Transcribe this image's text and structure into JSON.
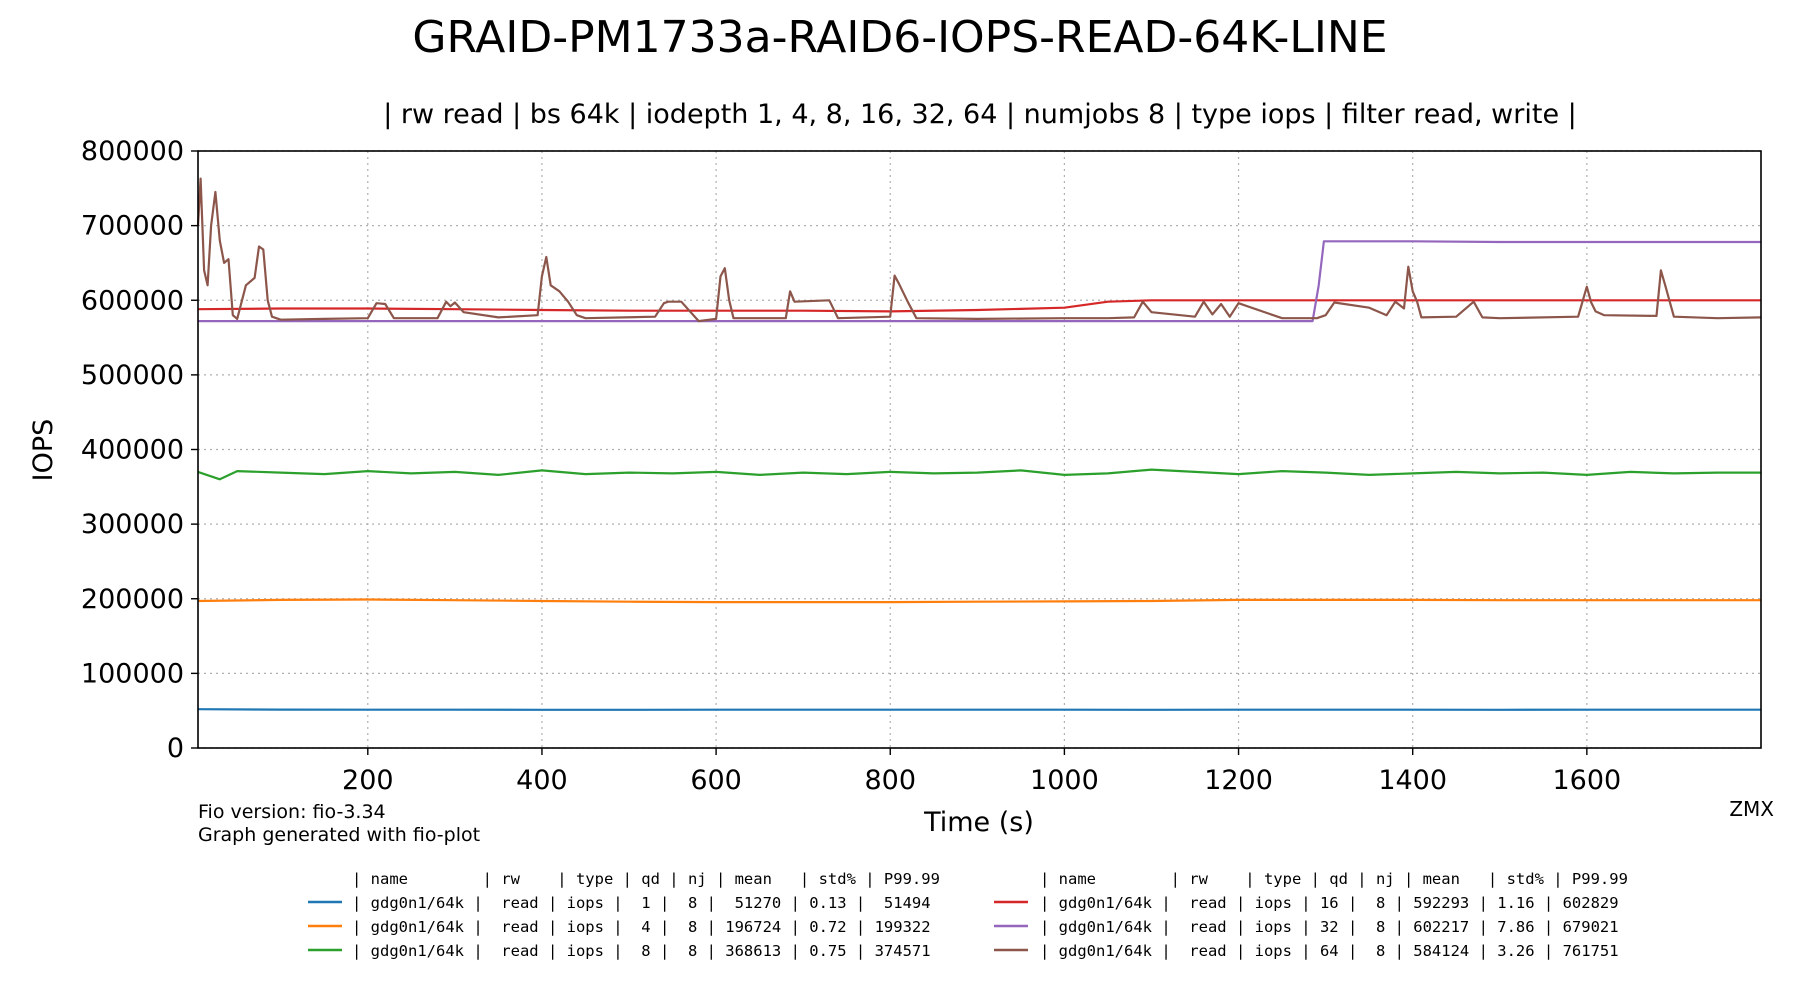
{
  "chart_data": {
    "type": "line",
    "title": "GRAID-PM1733a-RAID6-IOPS-READ-64K-LINE",
    "subtitle": "| rw read | bs 64k | iodepth 1, 4, 8, 16, 32, 64 | numjobs 8 | type iops | filter read, write |",
    "xlabel": "Time (s)",
    "ylabel": "IOPS",
    "xlim": [
      5,
      1800
    ],
    "ylim": [
      0,
      800000
    ],
    "x_ticks": [
      200,
      400,
      600,
      800,
      1000,
      1200,
      1400,
      1600
    ],
    "x_tick_labels": [
      "200",
      "400",
      "600",
      "800",
      "1000",
      "1200",
      "1400",
      "1600"
    ],
    "y_ticks": [
      0,
      100000,
      200000,
      300000,
      400000,
      500000,
      600000,
      700000,
      800000
    ],
    "y_tick_labels": [
      "0",
      "100000",
      "200000",
      "300000",
      "400000",
      "500000",
      "600000",
      "700000",
      "800000"
    ],
    "grid": true,
    "series": [
      {
        "color": "#1f77b4",
        "x": [
          5,
          100,
          200,
          300,
          400,
          500,
          600,
          700,
          800,
          900,
          1000,
          1100,
          1200,
          1300,
          1400,
          1500,
          1600,
          1700,
          1800
        ],
        "y": [
          52000,
          51500,
          51300,
          51300,
          51200,
          51200,
          51300,
          51300,
          51300,
          51300,
          51300,
          51200,
          51300,
          51300,
          51300,
          51200,
          51300,
          51300,
          51300
        ]
      },
      {
        "color": "#ff7f0e",
        "x": [
          5,
          100,
          200,
          300,
          400,
          500,
          600,
          700,
          800,
          900,
          1000,
          1100,
          1200,
          1300,
          1400,
          1500,
          1600,
          1700,
          1800
        ],
        "y": [
          197000,
          198500,
          199000,
          198000,
          197000,
          196000,
          195500,
          195500,
          195500,
          196000,
          196500,
          197000,
          198500,
          198500,
          198500,
          198000,
          198000,
          198000,
          198000
        ]
      },
      {
        "color": "#2ca02c",
        "x": [
          5,
          30,
          50,
          100,
          150,
          200,
          250,
          300,
          350,
          400,
          450,
          500,
          550,
          600,
          650,
          700,
          750,
          800,
          850,
          900,
          950,
          1000,
          1050,
          1100,
          1150,
          1200,
          1250,
          1300,
          1350,
          1400,
          1450,
          1500,
          1550,
          1600,
          1650,
          1700,
          1750,
          1800
        ],
        "y": [
          370000,
          360000,
          371000,
          369000,
          367000,
          371000,
          368000,
          370000,
          366000,
          372000,
          367000,
          369000,
          368000,
          370000,
          366000,
          369000,
          367000,
          370000,
          368000,
          369000,
          372000,
          366000,
          368000,
          373000,
          370000,
          367000,
          371000,
          369000,
          366000,
          368000,
          370000,
          368000,
          369000,
          366000,
          370000,
          368000,
          369000,
          369000
        ]
      },
      {
        "color": "#d62728",
        "x": [
          5,
          100,
          200,
          300,
          400,
          500,
          600,
          700,
          800,
          900,
          1000,
          1050,
          1100,
          1200,
          1300,
          1400,
          1500,
          1600,
          1700,
          1800
        ],
        "y": [
          588000,
          589000,
          589000,
          588000,
          587000,
          586000,
          586000,
          586000,
          585000,
          587000,
          590000,
          598000,
          600000,
          600000,
          600000,
          600000,
          600000,
          600000,
          600000,
          600000
        ]
      },
      {
        "color": "#9467bd",
        "x": [
          5,
          100,
          200,
          300,
          400,
          500,
          600,
          700,
          800,
          900,
          1000,
          1100,
          1200,
          1285,
          1292,
          1298,
          1400,
          1500,
          1600,
          1700,
          1800
        ],
        "y": [
          572000,
          572000,
          572000,
          572000,
          572000,
          572000,
          572000,
          572000,
          572000,
          572000,
          572000,
          572000,
          572000,
          572000,
          620000,
          679000,
          679000,
          678000,
          678000,
          678000,
          678000
        ]
      },
      {
        "color": "#8c564b",
        "x": [
          5,
          8,
          12,
          16,
          20,
          25,
          30,
          35,
          40,
          45,
          50,
          60,
          70,
          75,
          80,
          85,
          90,
          100,
          150,
          200,
          210,
          220,
          230,
          280,
          290,
          295,
          300,
          310,
          350,
          395,
          400,
          405,
          410,
          420,
          430,
          440,
          450,
          530,
          540,
          545,
          560,
          580,
          600,
          605,
          610,
          615,
          620,
          680,
          685,
          690,
          730,
          740,
          800,
          805,
          810,
          820,
          830,
          900,
          1000,
          1050,
          1080,
          1090,
          1100,
          1150,
          1160,
          1170,
          1180,
          1190,
          1200,
          1250,
          1290,
          1300,
          1310,
          1350,
          1370,
          1380,
          1390,
          1395,
          1400,
          1405,
          1410,
          1450,
          1470,
          1480,
          1500,
          1590,
          1600,
          1605,
          1610,
          1620,
          1680,
          1685,
          1690,
          1700,
          1750,
          1800
        ],
        "y": [
          700000,
          763000,
          640000,
          620000,
          700000,
          745000,
          680000,
          650000,
          655000,
          580000,
          575000,
          620000,
          630000,
          672000,
          668000,
          600000,
          578000,
          574000,
          575000,
          576000,
          596000,
          595000,
          576000,
          576000,
          598000,
          592000,
          597000,
          584000,
          577000,
          580000,
          632000,
          658000,
          620000,
          612000,
          598000,
          580000,
          576000,
          578000,
          596000,
          598000,
          598000,
          572000,
          575000,
          632000,
          643000,
          600000,
          576000,
          576000,
          612000,
          598000,
          600000,
          576000,
          578000,
          633000,
          622000,
          598000,
          576000,
          575000,
          576000,
          576000,
          577000,
          598000,
          584000,
          578000,
          598000,
          581000,
          595000,
          578000,
          596000,
          576000,
          576000,
          580000,
          597000,
          590000,
          580000,
          598000,
          589000,
          645000,
          612000,
          598000,
          577000,
          578000,
          598000,
          577000,
          576000,
          578000,
          618000,
          597000,
          585000,
          580000,
          579000,
          640000,
          620000,
          578000,
          576000,
          577000
        ]
      }
    ]
  },
  "annotations": {
    "fio_version": "Fio version: fio-3.34",
    "generator": "Graph generated with fio-plot",
    "author": "ZMX"
  },
  "legend": {
    "columns": [
      {
        "header": "| name        | rw    | type | qd | nj | mean   | std% | P99.99",
        "rows": [
          {
            "color": "#1f77b4",
            "text": "| gdg0n1/64k |  read | iops |  1 |  8 |  51270 | 0.13 |  51494"
          },
          {
            "color": "#ff7f0e",
            "text": "| gdg0n1/64k |  read | iops |  4 |  8 | 196724 | 0.72 | 199322"
          },
          {
            "color": "#2ca02c",
            "text": "| gdg0n1/64k |  read | iops |  8 |  8 | 368613 | 0.75 | 374571"
          }
        ]
      },
      {
        "header": "| name        | rw    | type | qd | nj | mean   | std% | P99.99",
        "rows": [
          {
            "color": "#d62728",
            "text": "| gdg0n1/64k |  read | iops | 16 |  8 | 592293 | 1.16 | 602829"
          },
          {
            "color": "#9467bd",
            "text": "| gdg0n1/64k |  read | iops | 32 |  8 | 602217 | 7.86 | 679021"
          },
          {
            "color": "#8c564b",
            "text": "| gdg0n1/64k |  read | iops | 64 |  8 | 584124 | 3.26 | 761751"
          }
        ]
      }
    ]
  }
}
